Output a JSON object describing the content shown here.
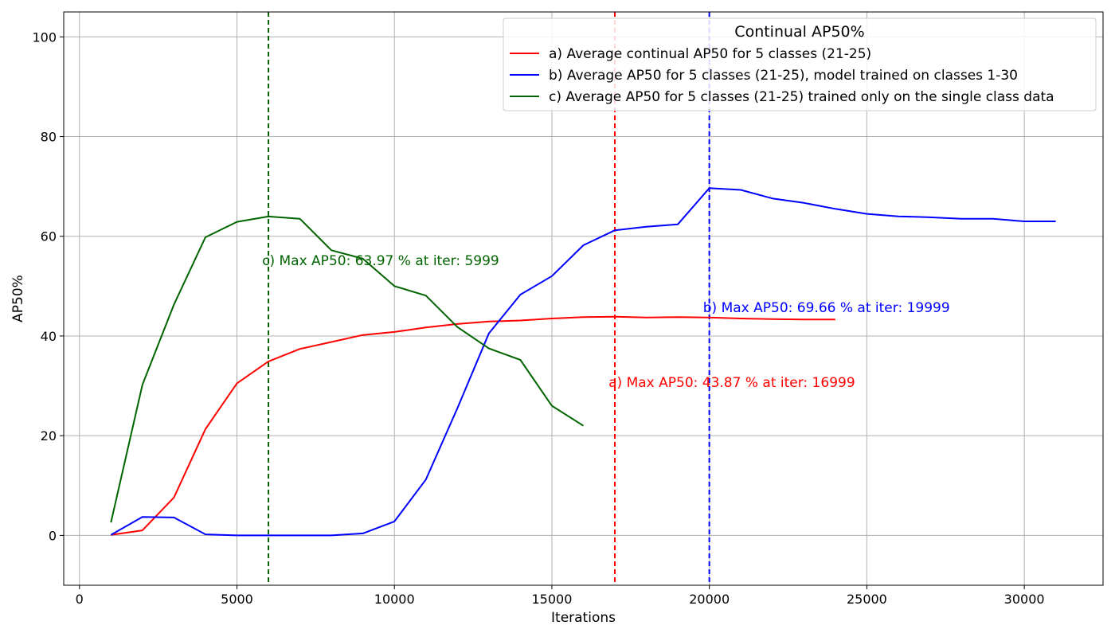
{
  "chart_data": {
    "type": "line",
    "title": "",
    "xlabel": "Iterations",
    "ylabel": "AP50%",
    "xlim": [
      -500,
      32500
    ],
    "ylim": [
      -10,
      105
    ],
    "xticks": [
      0,
      5000,
      10000,
      15000,
      20000,
      25000,
      30000
    ],
    "yticks": [
      0,
      20,
      40,
      60,
      80,
      100
    ],
    "grid": true,
    "legend": {
      "title": "Continual AP50%",
      "position": "top-right"
    },
    "series": [
      {
        "name": "a) Average continual AP50 for 5 classes (21-25)",
        "color": "#ff0000",
        "x": [
          999,
          1999,
          2999,
          3999,
          4999,
          5999,
          6999,
          7999,
          8999,
          9999,
          10999,
          11999,
          12999,
          13999,
          14999,
          15999,
          16999,
          17999,
          18999,
          19999,
          20999,
          21999,
          22999,
          23999
        ],
        "y": [
          0.1,
          1.0,
          7.6,
          21.3,
          30.5,
          34.9,
          37.4,
          38.8,
          40.2,
          40.8,
          41.7,
          42.4,
          42.9,
          43.1,
          43.5,
          43.8,
          43.87,
          43.7,
          43.8,
          43.7,
          43.5,
          43.4,
          43.3,
          43.3
        ]
      },
      {
        "name": "b) Average AP50 for 5 classes (21-25), model trained on classes 1-30",
        "color": "#0000ff",
        "x": [
          999,
          1999,
          2999,
          3999,
          4999,
          5999,
          6999,
          7999,
          8999,
          9999,
          10999,
          11999,
          12999,
          13999,
          14999,
          15999,
          16999,
          17999,
          18999,
          19999,
          20999,
          21999,
          22999,
          23999,
          24999,
          25999,
          26999,
          27999,
          28999,
          29999,
          30999
        ],
        "y": [
          0.1,
          3.7,
          3.6,
          0.2,
          0.0,
          0.0,
          0.0,
          0.0,
          0.4,
          2.8,
          11.2,
          25.5,
          40.5,
          48.3,
          52.0,
          58.2,
          61.2,
          61.9,
          62.4,
          69.66,
          69.3,
          67.6,
          66.7,
          65.5,
          64.5,
          64.0,
          63.8,
          63.5,
          63.5,
          63.0,
          63.0
        ]
      },
      {
        "name": "c) Average AP50 for 5 classes (21-25) trained only on the single class data",
        "color": "#006400",
        "x": [
          999,
          1999,
          2999,
          3999,
          4999,
          5999,
          6999,
          7999,
          8999,
          9999,
          10999,
          11999,
          12999,
          13999,
          14999,
          15999
        ],
        "y": [
          2.6,
          30.2,
          46.3,
          59.8,
          62.9,
          63.97,
          63.5,
          57.2,
          55.5,
          50.0,
          48.1,
          41.8,
          37.5,
          35.2,
          26.0,
          22.0
        ]
      }
    ],
    "vlines": [
      {
        "x": 5999,
        "color": "#006400"
      },
      {
        "x": 16999,
        "color": "#ff0000"
      },
      {
        "x": 19999,
        "color": "#0000ff"
      }
    ],
    "annotations": [
      {
        "text": "c) Max AP50: 63.97 % at iter: 5999",
        "x": 5800,
        "y": 54.2,
        "color": "#006400"
      },
      {
        "text": "b) Max AP50: 69.66 % at iter: 19999",
        "x": 19800,
        "y": 44.8,
        "color": "#0000ff"
      },
      {
        "text": "a) Max AP50: 43.87 % at iter: 16999",
        "x": 16800,
        "y": 29.8,
        "color": "#ff0000"
      }
    ]
  }
}
